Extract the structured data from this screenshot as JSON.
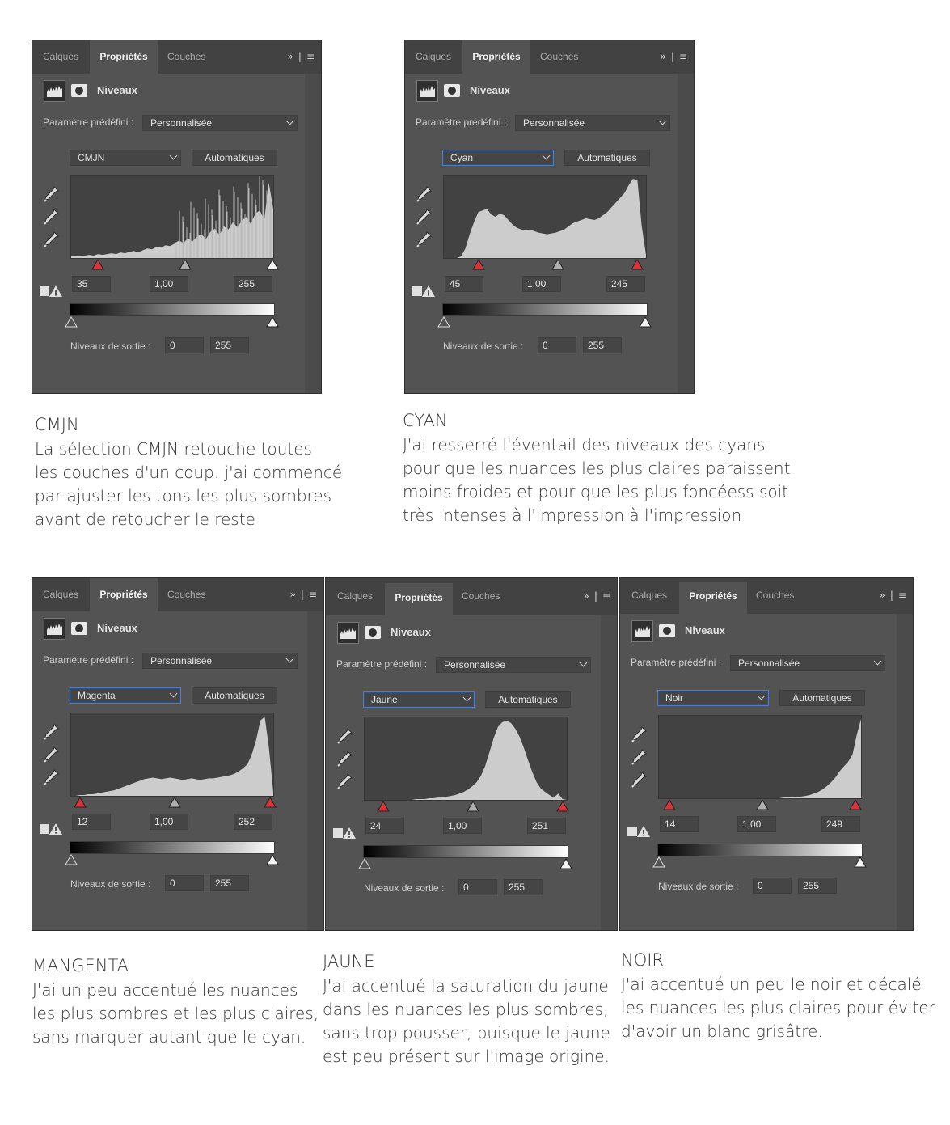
{
  "panels": [
    {
      "tabs": [
        "Calques",
        "Propriétés",
        "Couches"
      ],
      "collapse_icon": "double-chevron-icon",
      "menu_icon": "hamburger-menu-icon",
      "adjustment_title": "Niveaux",
      "preset_label": "Paramètre prédéfini :",
      "preset_value": "Personnalisée",
      "channel_value": "CMJN",
      "channel_focused": false,
      "auto_button": "Automatiques",
      "input_levels": {
        "black": "35",
        "gamma": "1,00",
        "white": "255"
      },
      "input_black_level": 35,
      "input_gamma_level": 1.0,
      "input_white_level": 255,
      "highlight_black": true,
      "highlight_white": false,
      "histogram": {
        "shape": "cmjn",
        "points": [
          2,
          2,
          3,
          3,
          4,
          3,
          5,
          4,
          5,
          6,
          5,
          7,
          6,
          8,
          9,
          7,
          10,
          12,
          11,
          14,
          13,
          16,
          15,
          18,
          22,
          19,
          25,
          21,
          27,
          30,
          24,
          33,
          37,
          29,
          40,
          36,
          45,
          39,
          47,
          52,
          43,
          56,
          60,
          48,
          95,
          62
        ]
      },
      "output_label": "Niveaux de sortie :",
      "output_levels": {
        "black": "0",
        "white": "255"
      },
      "caption_title": "CMJN",
      "caption_text": "La sélection CMJN retouche toutes\nles couches d'un coup. j'ai commencé\npar ajuster les tons les plus sombres\navant de retoucher le reste"
    },
    {
      "tabs": [
        "Calques",
        "Propriétés",
        "Couches"
      ],
      "collapse_icon": "double-chevron-icon",
      "menu_icon": "hamburger-menu-icon",
      "adjustment_title": "Niveaux",
      "preset_label": "Paramètre prédéfini :",
      "preset_value": "Personnalisée",
      "channel_value": "Cyan",
      "channel_focused": true,
      "auto_button": "Automatiques",
      "input_levels": {
        "black": "45",
        "gamma": "1,00",
        "white": "245"
      },
      "input_black_level": 45,
      "input_gamma_level": 1.0,
      "input_white_level": 245,
      "highlight_black": true,
      "highlight_white": true,
      "histogram": {
        "shape": "cyan",
        "points": [
          0,
          0,
          0,
          0,
          2,
          12,
          30,
          45,
          58,
          60,
          62,
          55,
          52,
          56,
          54,
          48,
          42,
          38,
          36,
          35,
          36,
          34,
          32,
          31,
          30,
          31,
          32,
          34,
          36,
          40,
          44,
          46,
          48,
          50,
          49,
          48,
          50,
          54,
          58,
          64,
          70,
          76,
          82,
          92,
          100,
          98,
          40,
          4
        ]
      },
      "output_label": "Niveaux de sortie :",
      "output_levels": {
        "black": "0",
        "white": "255"
      },
      "caption_title": "CYAN",
      "caption_text": "J'ai resserré l'éventail des niveaux des cyans\npour que les nuances les plus claires paraissent\nmoins froides et pour que les plus foncéess soit\ntrès intenses à l'impression à l'impression"
    },
    {
      "tabs": [
        "Calques",
        "Propriétés",
        "Couches"
      ],
      "collapse_icon": "double-chevron-icon",
      "menu_icon": "hamburger-menu-icon",
      "adjustment_title": "Niveaux",
      "preset_label": "Paramètre prédéfini :",
      "preset_value": "Personnalisée",
      "channel_value": "Magenta",
      "channel_focused": true,
      "auto_button": "Automatiques",
      "input_levels": {
        "black": "12",
        "gamma": "1,00",
        "white": "252"
      },
      "input_black_level": 12,
      "input_gamma_level": 1.0,
      "input_white_level": 252,
      "highlight_black": true,
      "highlight_white": true,
      "histogram": {
        "shape": "magenta",
        "points": [
          0,
          0,
          1,
          1,
          2,
          2,
          3,
          4,
          5,
          6,
          7,
          9,
          11,
          13,
          15,
          17,
          19,
          21,
          22,
          23,
          22,
          21,
          22,
          23,
          22,
          21,
          20,
          21,
          22,
          21,
          20,
          21,
          22,
          22,
          23,
          24,
          25,
          26,
          28,
          31,
          35,
          40,
          52,
          70,
          95,
          100,
          60,
          5
        ]
      },
      "output_label": "Niveaux de sortie :",
      "output_levels": {
        "black": "0",
        "white": "255"
      },
      "caption_title": "MANGENTA",
      "caption_text": "J'ai un peu accentué les nuances\nles plus sombres et les plus claires,\nsans marquer autant que le cyan."
    },
    {
      "tabs": [
        "Calques",
        "Propriétés",
        "Couches"
      ],
      "collapse_icon": "double-chevron-icon",
      "menu_icon": "hamburger-menu-icon",
      "adjustment_title": "Niveaux",
      "preset_label": "Paramètre prédéfini :",
      "preset_value": "Personnalisée",
      "channel_value": "Jaune",
      "channel_focused": true,
      "auto_button": "Automatiques",
      "input_levels": {
        "black": "24",
        "gamma": "1,00",
        "white": "251"
      },
      "input_black_level": 24,
      "input_gamma_level": 1.0,
      "input_white_level": 251,
      "highlight_black": true,
      "highlight_white": true,
      "histogram": {
        "shape": "jaune",
        "points": [
          0,
          0,
          0,
          0,
          0,
          0,
          0,
          0,
          0,
          0,
          0,
          0,
          1,
          1,
          1,
          2,
          2,
          3,
          3,
          4,
          5,
          6,
          8,
          10,
          13,
          17,
          22,
          30,
          42,
          60,
          78,
          92,
          98,
          100,
          97,
          90,
          80,
          66,
          50,
          35,
          22,
          14,
          10,
          6,
          3,
          8,
          1,
          0
        ]
      },
      "output_label": "Niveaux de sortie :",
      "output_levels": {
        "black": "0",
        "white": "255"
      },
      "caption_title": "JAUNE",
      "caption_text": "J'ai accentué la saturation du jaune\ndans les nuances les plus sombres,\nsans trop pousser, puisque le jaune\nest peu présent sur l'image origine."
    },
    {
      "tabs": [
        "Calques",
        "Propriétés",
        "Couches"
      ],
      "collapse_icon": "double-chevron-icon",
      "menu_icon": "hamburger-menu-icon",
      "adjustment_title": "Niveaux",
      "preset_label": "Paramètre prédéfini :",
      "preset_value": "Personnalisée",
      "channel_value": "Noir",
      "channel_focused": true,
      "auto_button": "Automatiques",
      "input_levels": {
        "black": "14",
        "gamma": "1,00",
        "white": "249"
      },
      "input_black_level": 14,
      "input_gamma_level": 1.0,
      "input_white_level": 249,
      "highlight_black": true,
      "highlight_white": true,
      "histogram": {
        "shape": "noir",
        "points": [
          0,
          0,
          0,
          0,
          0,
          0,
          0,
          0,
          0,
          0,
          0,
          0,
          0,
          0,
          0,
          0,
          0,
          0,
          0,
          0,
          0,
          0,
          0,
          0,
          0,
          0,
          0,
          0,
          0,
          1,
          1,
          1,
          2,
          2,
          3,
          4,
          6,
          8,
          11,
          15,
          20,
          26,
          34,
          40,
          46,
          55,
          80,
          100
        ]
      },
      "output_label": "Niveaux de sortie :",
      "output_levels": {
        "black": "0",
        "white": "255"
      },
      "caption_title": "NOIR",
      "caption_text": "J'ai accentué un peu le noir et décalé\nles nuances les plus claires pour éviter\nd'avoir un blanc grisâtre."
    }
  ],
  "colors": {
    "panel_bg": "#535353",
    "tabbar_bg": "#424242",
    "histogram_fill": "#cccccc",
    "slider_red": "#d9343a",
    "slider_gray": "#b0b0b0",
    "slider_white": "#f4f4f4",
    "focus_blue": "#4e7ec9"
  }
}
